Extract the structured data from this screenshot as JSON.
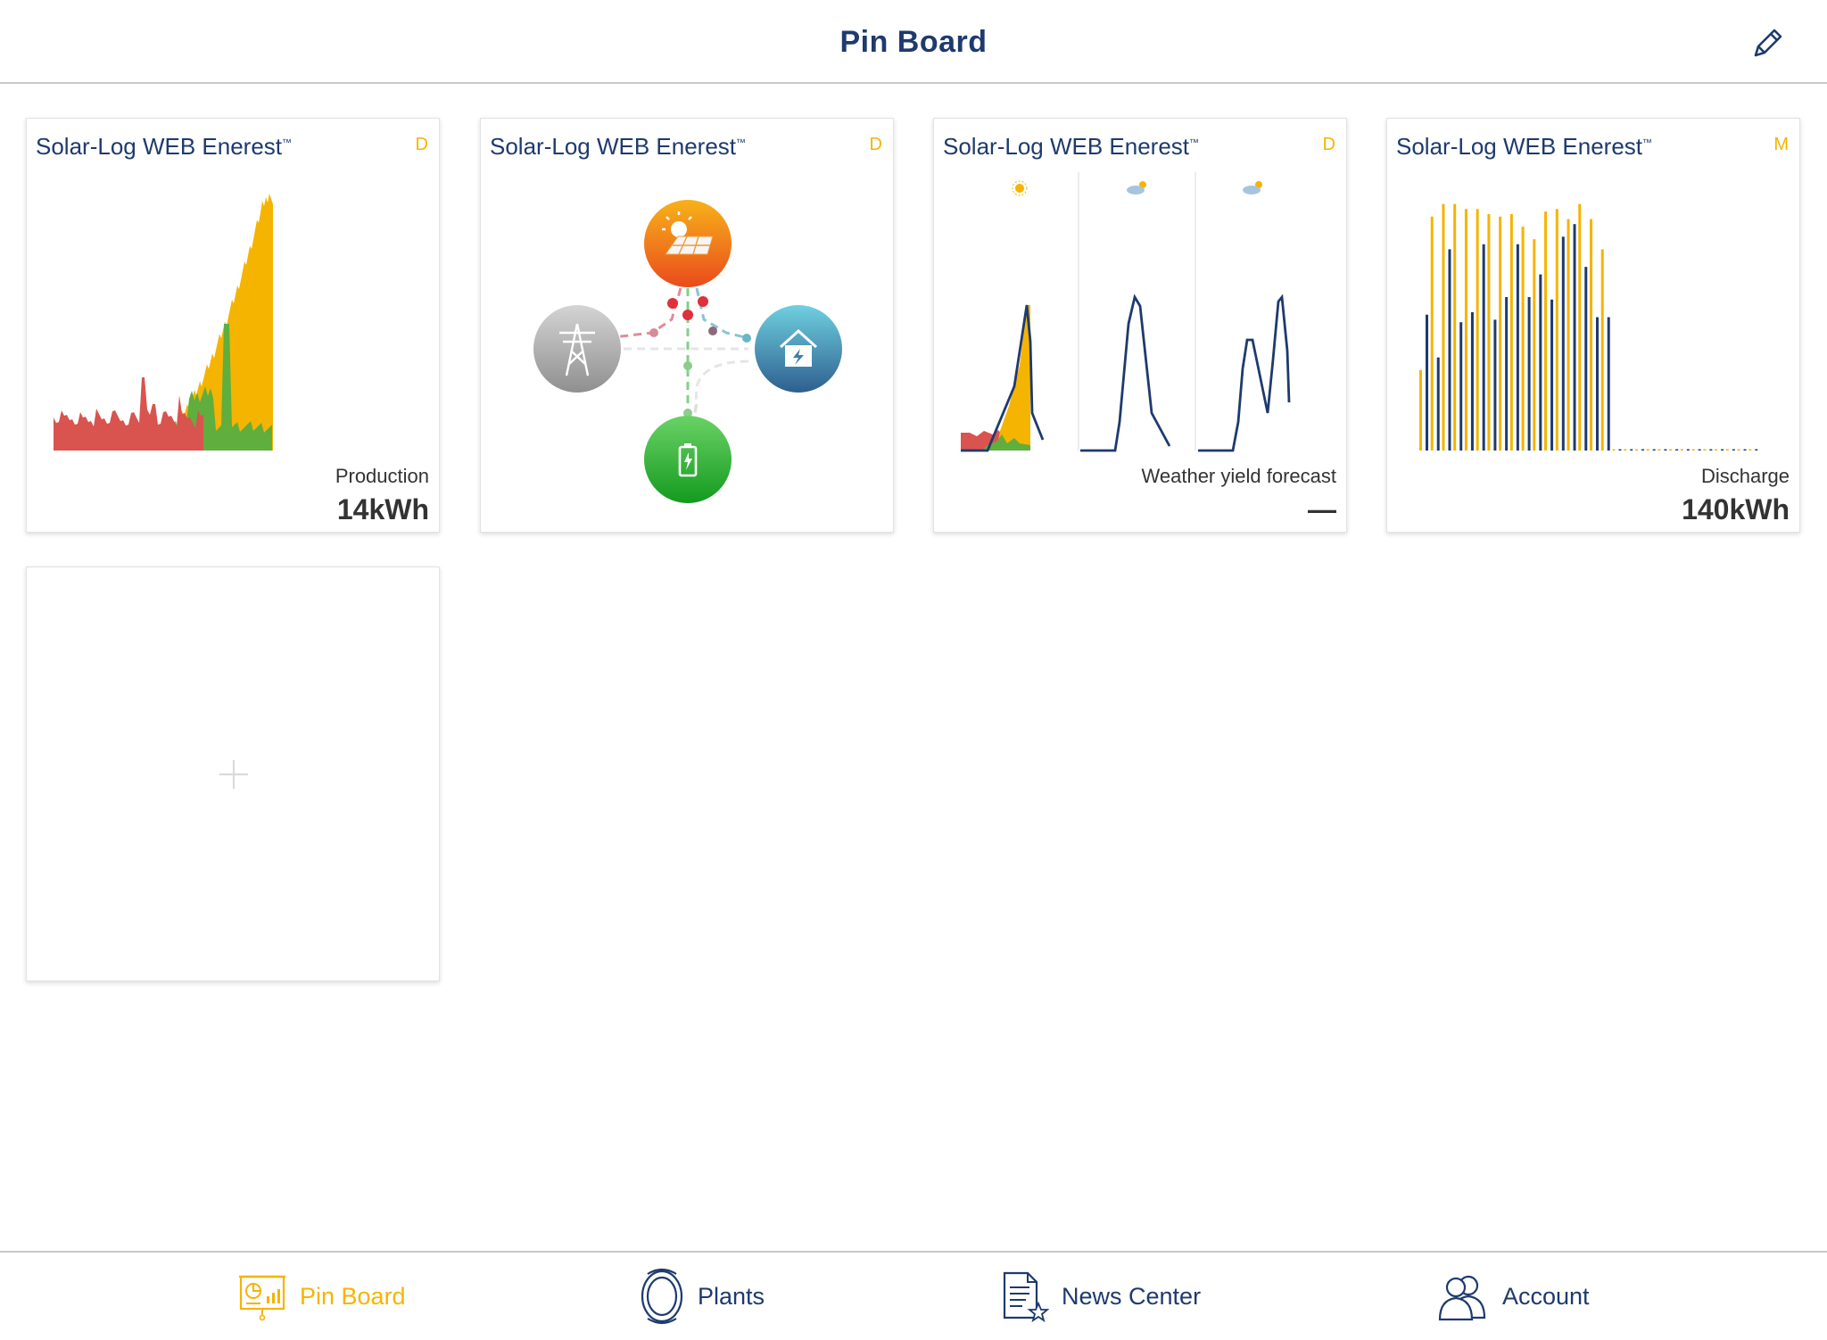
{
  "header": {
    "title": "Pin Board",
    "edit_icon": "pencil-icon"
  },
  "cards": [
    {
      "title": "Solar-Log WEB Enerest",
      "tm": "™",
      "period": "D",
      "label": "Production",
      "value": "14kWh",
      "chart_data": {
        "type": "area",
        "series": [
          {
            "color": "#f5b400"
          },
          {
            "color": "#5fae3e"
          },
          {
            "color": "#d9534f"
          }
        ]
      }
    },
    {
      "title": "Solar-Log WEB Enerest",
      "tm": "™",
      "period": "D",
      "nodes": [
        "solar-panel-icon",
        "power-tower-icon",
        "house-icon",
        "battery-icon"
      ],
      "colors": {
        "solar": "#f0801c",
        "grid": "#a8a8a8",
        "home": "#3b7fa8",
        "battery": "#29a532"
      }
    },
    {
      "title": "Solar-Log WEB Enerest",
      "tm": "™",
      "period": "D",
      "label": "Weather yield forecast",
      "value": "—",
      "weather_icons": [
        "sun-icon",
        "cloud-sun-icon",
        "cloud-sun-icon"
      ],
      "chart_data": {
        "type": "line",
        "line_color": "#1e3a6e"
      }
    },
    {
      "title": "Solar-Log WEB Enerest",
      "tm": "™",
      "period": "M",
      "label": "Discharge",
      "value": "140kWh",
      "chart_data": {
        "type": "bar",
        "series": [
          {
            "color": "#f5b400",
            "values": [
              32,
              93,
              98,
              98,
              96,
              96,
              94,
              93,
              94,
              89,
              84,
              95,
              96,
              92,
              98,
              92,
              80,
              0,
              0,
              0,
              0,
              0,
              0,
              0,
              0,
              0,
              0,
              0,
              0,
              0
            ]
          },
          {
            "color": "#1e3a6e",
            "values": [
              54,
              37,
              80,
              51,
              55,
              82,
              52,
              61,
              82,
              61,
              70,
              60,
              85,
              90,
              73,
              53,
              53,
              0,
              0,
              0,
              0,
              0,
              0,
              0,
              0,
              0,
              0,
              0,
              0,
              0
            ]
          }
        ],
        "ylim": [
          0,
          100
        ]
      }
    }
  ],
  "add_card": {
    "icon": "plus-icon"
  },
  "tabs": [
    {
      "label": "Pin Board",
      "icon": "pin-board-icon",
      "active": true
    },
    {
      "label": "Plants",
      "icon": "plants-icon",
      "active": false
    },
    {
      "label": "News Center",
      "icon": "news-center-icon",
      "active": false
    },
    {
      "label": "Account",
      "icon": "account-icon",
      "active": false
    }
  ]
}
